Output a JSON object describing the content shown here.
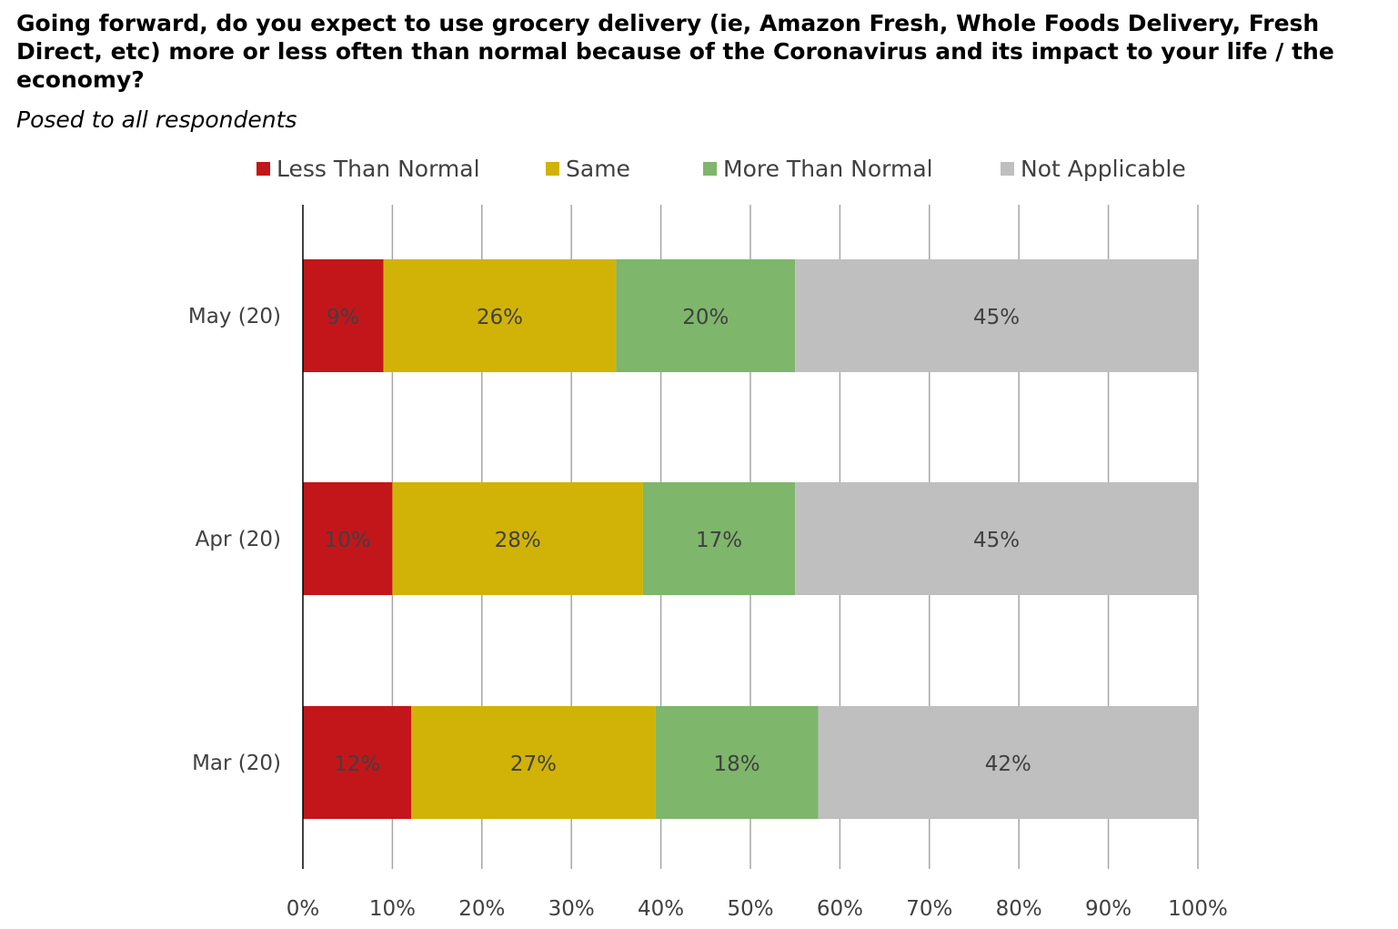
{
  "title": "Going forward, do you expect to use grocery delivery (ie, Amazon Fresh, Whole Foods Delivery, Fresh Direct, etc) more or less often than normal because of the Coronavirus and its impact to your life / the economy?",
  "subtitle": "Posed to all respondents",
  "chart_data": {
    "type": "bar",
    "orientation": "horizontal",
    "stacked": true,
    "categories": [
      "May (20)",
      "Apr (20)",
      "Mar (20)"
    ],
    "series": [
      {
        "name": "Less Than Normal",
        "color": "#c3161b",
        "values": [
          9,
          10,
          12
        ],
        "labels": [
          "9%",
          "10%",
          "12%"
        ]
      },
      {
        "name": "Same",
        "color": "#d1b307",
        "values": [
          26,
          28,
          27
        ],
        "labels": [
          "26%",
          "28%",
          "27%"
        ]
      },
      {
        "name": "More Than Normal",
        "color": "#7eb66b",
        "values": [
          20,
          17,
          18
        ],
        "labels": [
          "20%",
          "17%",
          "18%"
        ]
      },
      {
        "name": "Not Applicable",
        "color": "#bfbfbf",
        "values": [
          45,
          45,
          42
        ],
        "labels": [
          "45%",
          "45%",
          "42%"
        ]
      }
    ],
    "xlim": [
      0,
      100
    ],
    "xticks": [
      "0%",
      "10%",
      "20%",
      "30%",
      "40%",
      "50%",
      "60%",
      "70%",
      "80%",
      "90%",
      "100%"
    ],
    "grid": "vertical",
    "legend": "top"
  }
}
